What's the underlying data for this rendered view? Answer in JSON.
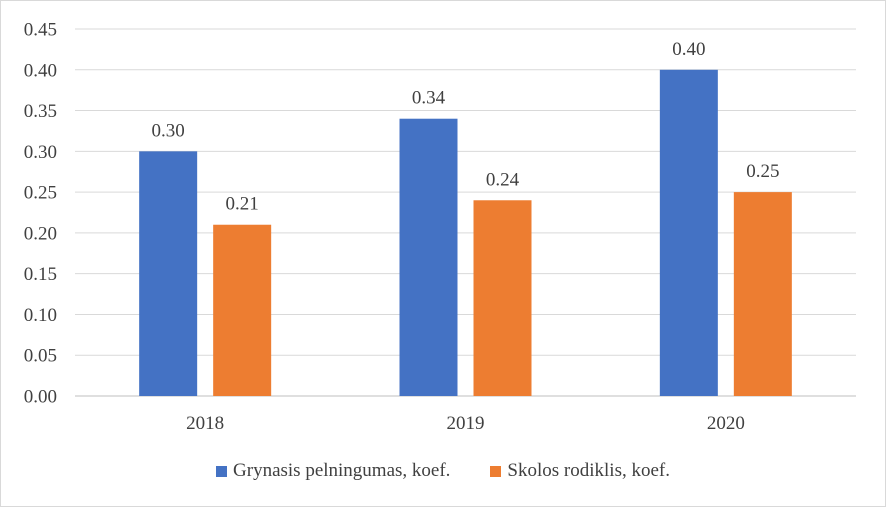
{
  "chart_data": {
    "type": "bar",
    "title": "",
    "xlabel": "",
    "ylabel": "",
    "categories": [
      "2018",
      "2019",
      "2020"
    ],
    "series": [
      {
        "name": "Grynasis pelningumas, koef.",
        "values": [
          0.3,
          0.34,
          0.4
        ],
        "labels": [
          "0.30",
          "0.34",
          "0.40"
        ],
        "color": "#4472C4"
      },
      {
        "name": "Skolos rodiklis, koef.",
        "values": [
          0.21,
          0.24,
          0.25
        ],
        "labels": [
          "0.21",
          "0.24",
          "0.25"
        ],
        "color": "#ED7D31"
      }
    ],
    "ylim": [
      0,
      0.45
    ],
    "yticks": [
      "0.00",
      "0.05",
      "0.10",
      "0.15",
      "0.20",
      "0.25",
      "0.30",
      "0.35",
      "0.40",
      "0.45"
    ],
    "grid": true,
    "legend": "bottom"
  }
}
